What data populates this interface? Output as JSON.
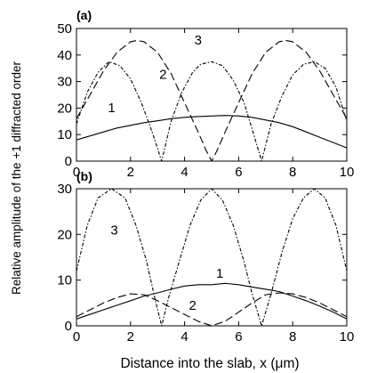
{
  "figure": {
    "ylabel": "Relative amplitude of the +1 diffracted order",
    "xlabel": "Distance into the slab, x (μm)"
  },
  "chart_data": [
    {
      "panel": "(a)",
      "type": "line",
      "xlim": [
        0,
        10
      ],
      "ylim": [
        0,
        50
      ],
      "xticks": [
        "0",
        "2",
        "4",
        "6",
        "8",
        "10"
      ],
      "yticks": [
        "0",
        "10",
        "20",
        "30",
        "40",
        "50"
      ],
      "grid": false,
      "legend": "none",
      "series": [
        {
          "name": "1",
          "style": "solid",
          "x": [
            0,
            0.5,
            1,
            1.5,
            2,
            2.5,
            3,
            3.5,
            4,
            4.5,
            5,
            5.5,
            6,
            6.5,
            7,
            7.5,
            8,
            8.5,
            9,
            9.5,
            10
          ],
          "y": [
            8,
            9.5,
            11,
            12.5,
            13.5,
            14.5,
            15.2,
            16,
            16.5,
            16.8,
            17,
            17.2,
            17,
            16.5,
            15.5,
            14.5,
            13,
            11,
            9,
            7,
            5
          ]
        },
        {
          "name": "2",
          "style": "dash-dot",
          "x": [
            0,
            0.4,
            0.8,
            1.2,
            1.6,
            2,
            2.4,
            2.8,
            3.15,
            3.5,
            3.9,
            4.3,
            4.6,
            5,
            5.4,
            5.8,
            6.2,
            6.5,
            6.85,
            7.2,
            7.6,
            8,
            8.4,
            8.8,
            9.2,
            9.6,
            10
          ],
          "y": [
            14,
            26,
            33.5,
            37.5,
            36,
            31,
            22,
            11,
            0,
            15,
            26,
            33.5,
            36.5,
            37.5,
            36,
            30.5,
            22,
            12,
            0,
            14,
            24.5,
            32.5,
            36.5,
            37.5,
            35,
            28,
            15
          ]
        },
        {
          "name": "3",
          "style": "dashed",
          "x": [
            0,
            0.5,
            1,
            1.5,
            2,
            2.25,
            2.5,
            3,
            3.5,
            4,
            4.5,
            4.8,
            5,
            5.2,
            5.5,
            6,
            6.5,
            7,
            7.5,
            7.75,
            8,
            8.5,
            9,
            9.5,
            10
          ],
          "y": [
            16,
            25,
            34,
            41,
            45,
            45.5,
            45,
            41,
            33,
            22,
            11,
            4,
            0,
            4,
            11,
            22,
            33,
            41,
            45,
            45.5,
            45,
            41,
            34,
            25,
            16
          ]
        }
      ],
      "annotations": [
        {
          "text": "1",
          "x": 1.3,
          "y": 18.5
        },
        {
          "text": "2",
          "x": 3.2,
          "y": 31
        },
        {
          "text": "3",
          "x": 4.5,
          "y": 44
        }
      ]
    },
    {
      "panel": "(b)",
      "type": "line",
      "xlim": [
        0,
        10
      ],
      "ylim": [
        0,
        30
      ],
      "xticks": [
        "0",
        "2",
        "4",
        "6",
        "8",
        "10"
      ],
      "yticks": [
        "0",
        "10",
        "20",
        "30"
      ],
      "grid": false,
      "legend": "none",
      "series": [
        {
          "name": "1",
          "style": "solid",
          "x": [
            0,
            0.5,
            1,
            1.5,
            2,
            2.5,
            3,
            3.5,
            4,
            4.5,
            5,
            5.5,
            6,
            6.5,
            7,
            7.5,
            8,
            8.5,
            9,
            9.5,
            10
          ],
          "y": [
            1.5,
            2.5,
            3.5,
            4.5,
            5.5,
            6.5,
            7.2,
            8,
            8.7,
            9,
            9,
            9.3,
            9,
            8.5,
            8,
            7.5,
            6.5,
            5.5,
            4.3,
            3,
            1.5
          ]
        },
        {
          "name": "2",
          "style": "dashed",
          "x": [
            0,
            0.5,
            1,
            1.5,
            2,
            2.5,
            3,
            3.5,
            4,
            4.5,
            5,
            5.5,
            6,
            6.5,
            7,
            7.5,
            8,
            8.5,
            9,
            9.5,
            10
          ],
          "y": [
            2,
            3.5,
            5,
            6.2,
            7,
            6.8,
            5.5,
            4,
            2.5,
            1,
            0,
            1,
            3,
            5,
            6.8,
            7.2,
            7,
            6.2,
            5,
            3.5,
            2
          ]
        },
        {
          "name": "3",
          "style": "dash-dot",
          "x": [
            0,
            0.4,
            0.8,
            1.3,
            1.8,
            2.2,
            2.6,
            2.9,
            3.15,
            3.4,
            3.8,
            4.2,
            4.6,
            5,
            5.4,
            5.8,
            6.2,
            6.5,
            6.85,
            7.2,
            7.6,
            8,
            8.4,
            8.8,
            9.2,
            9.6,
            10
          ],
          "y": [
            12,
            22,
            28,
            30,
            28,
            22,
            14,
            6,
            0,
            6,
            14,
            22,
            27.5,
            30,
            27.5,
            22,
            14,
            7,
            0,
            7,
            16,
            23.5,
            28,
            30,
            28,
            22,
            12
          ]
        }
      ],
      "annotations": [
        {
          "text": "1",
          "x": 5.3,
          "y": 10.5
        },
        {
          "text": "2",
          "x": 4.3,
          "y": 3.5
        },
        {
          "text": "3",
          "x": 1.4,
          "y": 20
        }
      ]
    }
  ]
}
